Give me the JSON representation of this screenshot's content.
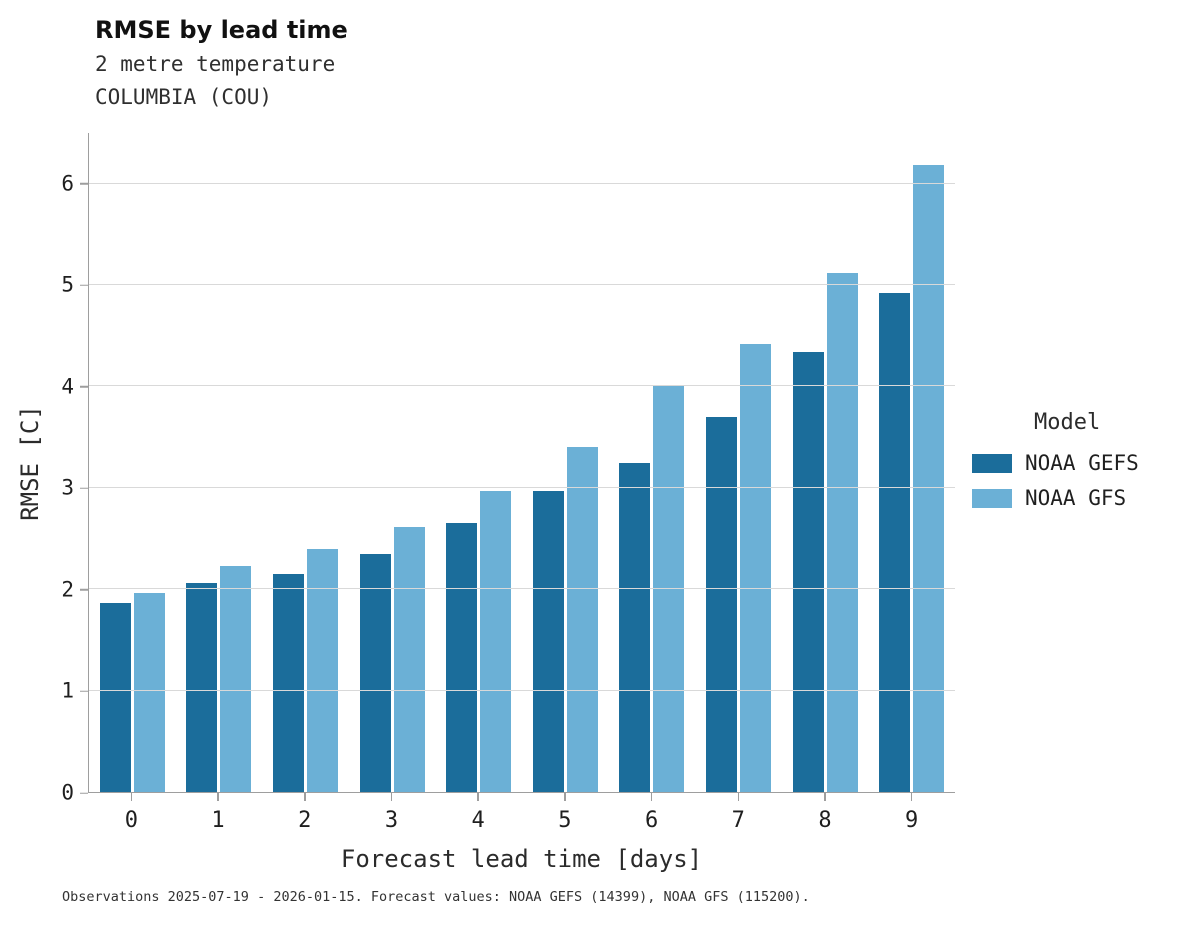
{
  "header": {
    "title": "RMSE by lead time",
    "subtitle_line1": "2 metre temperature",
    "subtitle_line2": "COLUMBIA (COU)"
  },
  "legend": {
    "title": "Model"
  },
  "footer": {
    "note": "Observations 2025-07-19 - 2026-01-15. Forecast values: NOAA GEFS (14399), NOAA GFS (115200)."
  },
  "chart_data": {
    "type": "bar",
    "title": "RMSE by lead time",
    "subtitle": [
      "2 metre temperature",
      "COLUMBIA (COU)"
    ],
    "categories": [
      "0",
      "1",
      "2",
      "3",
      "4",
      "5",
      "6",
      "7",
      "8",
      "9"
    ],
    "series": [
      {
        "name": "NOAA GEFS",
        "color": "#1b6d9b",
        "values": [
          1.86,
          2.06,
          2.15,
          2.35,
          2.65,
          2.97,
          3.25,
          3.7,
          4.34,
          4.92
        ]
      },
      {
        "name": "NOAA GFS",
        "color": "#6bb0d6",
        "values": [
          1.96,
          2.23,
          2.4,
          2.61,
          2.97,
          3.4,
          4.01,
          4.42,
          5.12,
          6.18
        ]
      }
    ],
    "xlabel": "Forecast lead time [days]",
    "ylabel": "RMSE [C]",
    "ylim": [
      0,
      6.5
    ],
    "yticks": [
      0,
      1,
      2,
      3,
      4,
      5,
      6
    ],
    "grid": true,
    "legend_title": "Model",
    "legend_position": "right"
  }
}
